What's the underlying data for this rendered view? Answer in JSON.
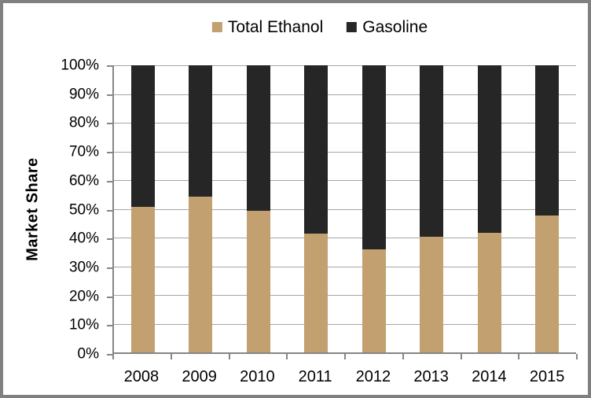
{
  "chart_data": {
    "type": "bar",
    "subtype": "stacked-100",
    "title": "",
    "ylabel": "Market Share",
    "xlabel": "",
    "categories": [
      "2008",
      "2009",
      "2010",
      "2011",
      "2012",
      "2013",
      "2014",
      "2015"
    ],
    "series": [
      {
        "name": "Total Ethanol",
        "color": "#c2a070",
        "values": [
          50.7,
          54.3,
          49.2,
          41.3,
          35.8,
          40.2,
          41.6,
          47.7
        ]
      },
      {
        "name": "Gasoline",
        "color": "#262626",
        "values": [
          49.3,
          45.7,
          50.8,
          58.7,
          64.2,
          59.8,
          58.4,
          52.3
        ]
      }
    ],
    "y_ticks": [
      "100%",
      "90%",
      "80%",
      "70%",
      "60%",
      "50%",
      "40%",
      "30%",
      "20%",
      "10%",
      "0%"
    ],
    "ylim": [
      0,
      100
    ],
    "grid": "horizontal",
    "legend_position": "top",
    "colors": {
      "gridline": "#a6a6a6",
      "axis": "#868686",
      "frame_border": "#808080",
      "background": "#ffffff",
      "text": "#000000"
    }
  },
  "legend": {
    "items": [
      {
        "label": "Total Ethanol",
        "color": "#c2a070"
      },
      {
        "label": "Gasoline",
        "color": "#262626"
      }
    ]
  }
}
